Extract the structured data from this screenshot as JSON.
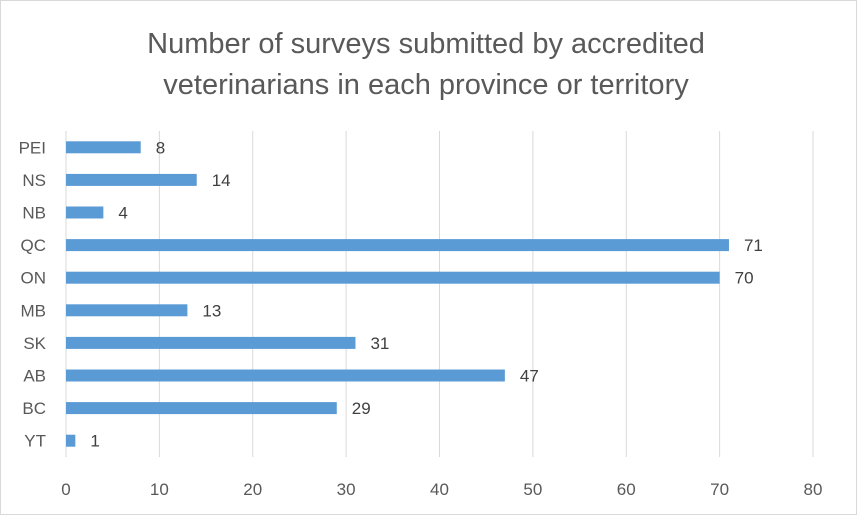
{
  "chart_data": {
    "type": "bar",
    "orientation": "horizontal",
    "title_lines": [
      "Number of surveys submitted by accredited",
      "veterinarians in each province or territory"
    ],
    "categories": [
      "PEI",
      "NS",
      "NB",
      "QC",
      "ON",
      "MB",
      "SK",
      "AB",
      "BC",
      "YT"
    ],
    "values": [
      8,
      14,
      4,
      71,
      70,
      13,
      31,
      47,
      29,
      1
    ],
    "xticks": [
      "0",
      "10",
      "20",
      "30",
      "40",
      "50",
      "60",
      "70",
      "80"
    ],
    "xlim": [
      0,
      80
    ],
    "grid": true,
    "legend": "none",
    "bar_color": "#5b9bd5",
    "grid_color": "#d9d9d9"
  }
}
